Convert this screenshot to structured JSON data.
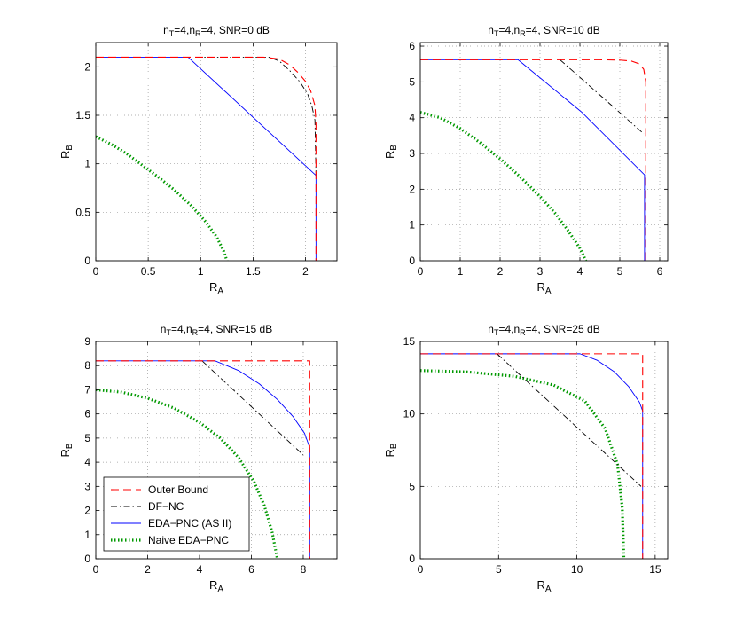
{
  "series_styles": [
    {
      "key": "outer",
      "name": "Outer Bound",
      "color": "#ff0000",
      "dash": "9,5",
      "width": 1.1
    },
    {
      "key": "dfnc",
      "name": "DF−NC",
      "color": "#000000",
      "dash": "7,3,1.5,3",
      "width": 0.9
    },
    {
      "key": "eda",
      "name": "EDA−PNC (AS II)",
      "color": "#0000ff",
      "dash": "",
      "width": 0.9
    },
    {
      "key": "naive",
      "name": "Naive EDA−PNC",
      "color": "#009900",
      "dash": "1.5,2.5",
      "width": 3.2
    }
  ],
  "chart_data": [
    {
      "type": "line",
      "title_parts": [
        "n",
        "T",
        "=4,n",
        "R",
        "=4, SNR=0 dB"
      ],
      "xlabel": [
        "R",
        "A"
      ],
      "ylabel": [
        "R",
        "B"
      ],
      "xlim": [
        0,
        2.3
      ],
      "ylim": [
        0,
        2.25
      ],
      "xticks": [
        0,
        0.5,
        1,
        1.5,
        2
      ],
      "xtick_labels": [
        "0",
        "0.5",
        "1",
        "1.5",
        "2"
      ],
      "yticks": [
        0,
        0.5,
        1,
        1.5,
        2
      ],
      "ytick_labels": [
        "0",
        "0.5",
        "1",
        "1.5",
        "2"
      ],
      "series": [
        {
          "key": "outer",
          "x": [
            0,
            1.6,
            1.75,
            1.85,
            1.93,
            2.0,
            2.05,
            2.09,
            2.1,
            2.1
          ],
          "y": [
            2.1,
            2.1,
            2.08,
            2.02,
            1.94,
            1.85,
            1.75,
            1.6,
            1.4,
            0
          ]
        },
        {
          "key": "dfnc",
          "x": [
            0.95,
            1.65,
            1.75,
            1.85,
            1.95,
            2.02,
            2.06,
            2.09,
            2.1
          ],
          "y": [
            2.1,
            2.1,
            2.06,
            1.96,
            1.84,
            1.72,
            1.6,
            1.45,
            0.88
          ]
        },
        {
          "key": "eda",
          "x": [
            0,
            0.88,
            2.1,
            2.1
          ],
          "y": [
            2.1,
            2.1,
            0.88,
            0
          ]
        },
        {
          "key": "naive",
          "x": [
            0,
            0.15,
            0.3,
            0.45,
            0.6,
            0.75,
            0.9,
            1.05,
            1.15,
            1.22,
            1.25
          ],
          "y": [
            1.28,
            1.2,
            1.1,
            0.98,
            0.86,
            0.73,
            0.58,
            0.4,
            0.25,
            0.1,
            0
          ]
        }
      ]
    },
    {
      "type": "line",
      "title_parts": [
        "n",
        "T",
        "=4,n",
        "R",
        "=4, SNR=10 dB"
      ],
      "xlabel": [
        "R",
        "A"
      ],
      "ylabel": [
        "R",
        "B"
      ],
      "xlim": [
        0,
        6.2
      ],
      "ylim": [
        0,
        6.1
      ],
      "xticks": [
        0,
        1,
        2,
        3,
        4,
        5,
        6
      ],
      "xtick_labels": [
        "0",
        "1",
        "2",
        "3",
        "4",
        "5",
        "6"
      ],
      "yticks": [
        0,
        1,
        2,
        3,
        4,
        5,
        6
      ],
      "ytick_labels": [
        "0",
        "1",
        "2",
        "3",
        "4",
        "5",
        "6"
      ],
      "series": [
        {
          "key": "outer",
          "x": [
            0,
            4.5,
            5.0,
            5.3,
            5.5,
            5.6,
            5.65,
            5.65
          ],
          "y": [
            5.62,
            5.62,
            5.61,
            5.58,
            5.5,
            5.35,
            5.0,
            0
          ]
        },
        {
          "key": "dfnc",
          "x": [
            3.5,
            5.6
          ],
          "y": [
            5.62,
            3.55
          ]
        },
        {
          "key": "eda",
          "x": [
            0,
            2.45,
            4.05,
            5.62,
            5.62
          ],
          "y": [
            5.62,
            5.62,
            4.15,
            2.4,
            0
          ]
        },
        {
          "key": "naive",
          "x": [
            0,
            0.5,
            1.0,
            1.5,
            2.0,
            2.5,
            3.0,
            3.4,
            3.7,
            4.0,
            4.15
          ],
          "y": [
            4.15,
            4.0,
            3.7,
            3.3,
            2.85,
            2.35,
            1.8,
            1.3,
            0.85,
            0.35,
            0
          ]
        }
      ]
    },
    {
      "type": "line",
      "title_parts": [
        "n",
        "T",
        "=4,n",
        "R",
        "=4, SNR=15 dB"
      ],
      "xlabel": [
        "R",
        "A"
      ],
      "ylabel": [
        "R",
        "B"
      ],
      "xlim": [
        0,
        9.3
      ],
      "ylim": [
        0,
        9
      ],
      "xticks": [
        0,
        2,
        4,
        6,
        8
      ],
      "xtick_labels": [
        "0",
        "2",
        "4",
        "6",
        "8"
      ],
      "yticks": [
        0,
        1,
        2,
        3,
        4,
        5,
        6,
        7,
        8,
        9
      ],
      "ytick_labels": [
        "0",
        "1",
        "2",
        "3",
        "4",
        "5",
        "6",
        "7",
        "8",
        "9"
      ],
      "series": [
        {
          "key": "outer",
          "x": [
            0,
            8.25,
            8.25
          ],
          "y": [
            8.2,
            8.2,
            0
          ]
        },
        {
          "key": "dfnc",
          "x": [
            4.1,
            8.0
          ],
          "y": [
            8.2,
            4.3
          ]
        },
        {
          "key": "eda",
          "x": [
            0,
            4.6,
            5.5,
            6.3,
            7.0,
            7.6,
            8.05,
            8.25,
            8.25
          ],
          "y": [
            8.2,
            8.2,
            7.8,
            7.25,
            6.6,
            5.9,
            5.2,
            4.6,
            0
          ]
        },
        {
          "key": "naive",
          "x": [
            0,
            1.0,
            2.0,
            3.0,
            4.0,
            4.8,
            5.5,
            6.1,
            6.5,
            6.8,
            7.0
          ],
          "y": [
            7.0,
            6.9,
            6.65,
            6.25,
            5.65,
            5.0,
            4.2,
            3.2,
            2.2,
            1.1,
            0
          ]
        }
      ]
    },
    {
      "type": "line",
      "title_parts": [
        "n",
        "T",
        "=4,n",
        "R",
        "=4, SNR=25 dB"
      ],
      "xlabel": [
        "R",
        "A"
      ],
      "ylabel": [
        "R",
        "B"
      ],
      "xlim": [
        0,
        15.8
      ],
      "ylim": [
        0,
        15
      ],
      "xticks": [
        0,
        5,
        10,
        15
      ],
      "xtick_labels": [
        "0",
        "5",
        "10",
        "15"
      ],
      "yticks": [
        0,
        5,
        10,
        15
      ],
      "ytick_labels": [
        "0",
        "5",
        "10",
        "15"
      ],
      "series": [
        {
          "key": "outer",
          "x": [
            0,
            14.2,
            14.2
          ],
          "y": [
            14.15,
            14.15,
            0
          ]
        },
        {
          "key": "dfnc",
          "x": [
            4.9,
            14.1
          ],
          "y": [
            14.15,
            5.0
          ]
        },
        {
          "key": "eda",
          "x": [
            0,
            10.2,
            11.3,
            12.4,
            13.3,
            14.0,
            14.2,
            14.2
          ],
          "y": [
            14.15,
            14.15,
            13.7,
            12.9,
            11.9,
            10.8,
            10.2,
            0
          ]
        },
        {
          "key": "naive",
          "x": [
            0,
            3.0,
            6.0,
            8.5,
            10.5,
            11.8,
            12.6,
            12.9,
            13.0
          ],
          "y": [
            13.0,
            12.9,
            12.6,
            12.0,
            10.9,
            9.0,
            6.5,
            3.5,
            0
          ]
        }
      ]
    }
  ],
  "legend": {
    "placement": "lower-left of third panel",
    "entries": [
      "Outer Bound",
      "DF−NC",
      "EDA−PNC (AS II)",
      "Naive EDA−PNC"
    ]
  }
}
